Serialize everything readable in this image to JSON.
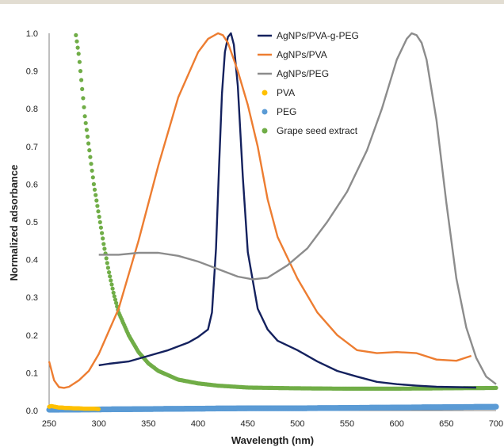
{
  "chart_data": {
    "type": "line",
    "xlabel": "Wavelength (nm)",
    "ylabel": "Normalized adsorbance",
    "xlim": [
      250,
      700
    ],
    "ylim": [
      0,
      1.0
    ],
    "xticks": [
      250,
      300,
      350,
      400,
      450,
      500,
      550,
      600,
      650,
      700
    ],
    "yticks": [
      0.0,
      0.1,
      0.2,
      0.3,
      0.4,
      0.5,
      0.6,
      0.7,
      0.8,
      0.9,
      1.0
    ],
    "ytick_labels": [
      "0.0",
      "0.1",
      "0.2",
      "0.3",
      "0.4",
      "0.5",
      "0.6",
      "0.7",
      "0.8",
      "0.9",
      "1.0"
    ],
    "grid": false,
    "legend_position": "top-right",
    "series": [
      {
        "name": "AgNPs/PVA-g-PEG",
        "style": "line",
        "color": "#14215e",
        "x": [
          300,
          310,
          330,
          350,
          370,
          390,
          400,
          410,
          414,
          418,
          421,
          424,
          427,
          430,
          433,
          436,
          440,
          445,
          450,
          460,
          470,
          480,
          500,
          520,
          540,
          560,
          580,
          600,
          620,
          640,
          660,
          680
        ],
        "y": [
          0.12,
          0.124,
          0.13,
          0.145,
          0.16,
          0.18,
          0.195,
          0.215,
          0.26,
          0.43,
          0.64,
          0.84,
          0.95,
          0.99,
          1.0,
          0.97,
          0.86,
          0.62,
          0.42,
          0.27,
          0.215,
          0.185,
          0.16,
          0.13,
          0.105,
          0.09,
          0.076,
          0.07,
          0.066,
          0.063,
          0.062,
          0.061
        ]
      },
      {
        "name": "AgNPs/PVA",
        "style": "line",
        "color": "#ed7d31",
        "x": [
          250,
          255,
          260,
          265,
          270,
          280,
          290,
          300,
          320,
          340,
          360,
          380,
          400,
          410,
          420,
          425,
          430,
          440,
          450,
          460,
          470,
          480,
          500,
          520,
          540,
          560,
          580,
          600,
          620,
          640,
          660,
          675
        ],
        "y": [
          0.13,
          0.08,
          0.062,
          0.06,
          0.063,
          0.08,
          0.105,
          0.15,
          0.27,
          0.45,
          0.65,
          0.83,
          0.95,
          0.985,
          1.0,
          0.995,
          0.975,
          0.9,
          0.81,
          0.7,
          0.56,
          0.46,
          0.35,
          0.26,
          0.2,
          0.16,
          0.152,
          0.155,
          0.152,
          0.135,
          0.132,
          0.145
        ]
      },
      {
        "name": "AgNPs/PEG",
        "style": "line",
        "color": "#8c8c8c",
        "x": [
          300,
          320,
          340,
          360,
          380,
          400,
          420,
          440,
          455,
          470,
          490,
          510,
          530,
          550,
          570,
          585,
          600,
          610,
          615,
          620,
          625,
          630,
          640,
          650,
          660,
          670,
          680,
          690,
          700
        ],
        "y": [
          0.413,
          0.413,
          0.418,
          0.418,
          0.41,
          0.395,
          0.375,
          0.355,
          0.348,
          0.352,
          0.385,
          0.43,
          0.5,
          0.58,
          0.69,
          0.8,
          0.93,
          0.985,
          1.0,
          0.995,
          0.975,
          0.93,
          0.77,
          0.55,
          0.35,
          0.22,
          0.14,
          0.09,
          0.07
        ]
      },
      {
        "name": "PVA",
        "style": "markers",
        "color": "#ffc000",
        "x": [
          250,
          252,
          254,
          256,
          258,
          260,
          263,
          266,
          270,
          275,
          280,
          285,
          290,
          295,
          300
        ],
        "y": [
          0.01,
          0.012,
          0.011,
          0.01,
          0.009,
          0.008,
          0.008,
          0.007,
          0.007,
          0.006,
          0.006,
          0.005,
          0.005,
          0.005,
          0.004
        ]
      },
      {
        "name": "PEG",
        "style": "markers",
        "color": "#5b9bd5",
        "x": [
          250,
          300,
          350,
          400,
          450,
          500,
          550,
          600,
          650,
          700
        ],
        "y": [
          0.002,
          0.003,
          0.004,
          0.005,
          0.006,
          0.006,
          0.007,
          0.008,
          0.009,
          0.01
        ]
      },
      {
        "name": "Grape seed extract",
        "style": "markers",
        "color": "#70ad47",
        "x": [
          277,
          280,
          283,
          286,
          290,
          295,
          300,
          305,
          310,
          315,
          320,
          330,
          340,
          350,
          360,
          380,
          400,
          420,
          450,
          500,
          550,
          600,
          650,
          700
        ],
        "y": [
          0.995,
          0.94,
          0.86,
          0.78,
          0.7,
          0.6,
          0.52,
          0.44,
          0.37,
          0.31,
          0.26,
          0.2,
          0.155,
          0.125,
          0.105,
          0.082,
          0.072,
          0.066,
          0.061,
          0.059,
          0.058,
          0.058,
          0.059,
          0.06
        ]
      }
    ]
  }
}
